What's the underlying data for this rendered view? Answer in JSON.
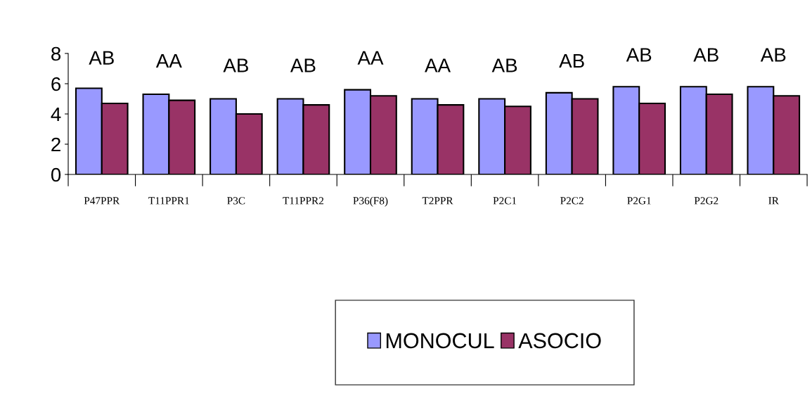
{
  "chart_data": {
    "type": "bar",
    "categories": [
      "P47PPR",
      "T11PPR1",
      "P3C",
      "T11PPR2",
      "P36(F8)",
      "T2PPR",
      "P2C1",
      "P2C2",
      "P2G1",
      "P2G2",
      "IR"
    ],
    "series": [
      {
        "name": "MONOCUL",
        "color": "#9999ff",
        "values": [
          5.7,
          5.3,
          5.0,
          5.0,
          5.6,
          5.0,
          5.0,
          5.4,
          5.8,
          5.8,
          5.8
        ]
      },
      {
        "name": "ASOCIO",
        "color": "#993366",
        "values": [
          4.7,
          4.9,
          4.0,
          4.6,
          5.2,
          4.6,
          4.5,
          5.0,
          4.7,
          5.3,
          5.2
        ]
      }
    ],
    "ylim": [
      0,
      8
    ],
    "yticks": [
      0,
      2,
      4,
      6,
      8
    ],
    "grid": false,
    "legend": "bottom",
    "annotations": [
      "AB",
      "AA",
      "AB",
      "AB",
      "AA",
      "AA",
      "AB",
      "AB",
      "AB",
      "AB",
      "AB"
    ]
  }
}
